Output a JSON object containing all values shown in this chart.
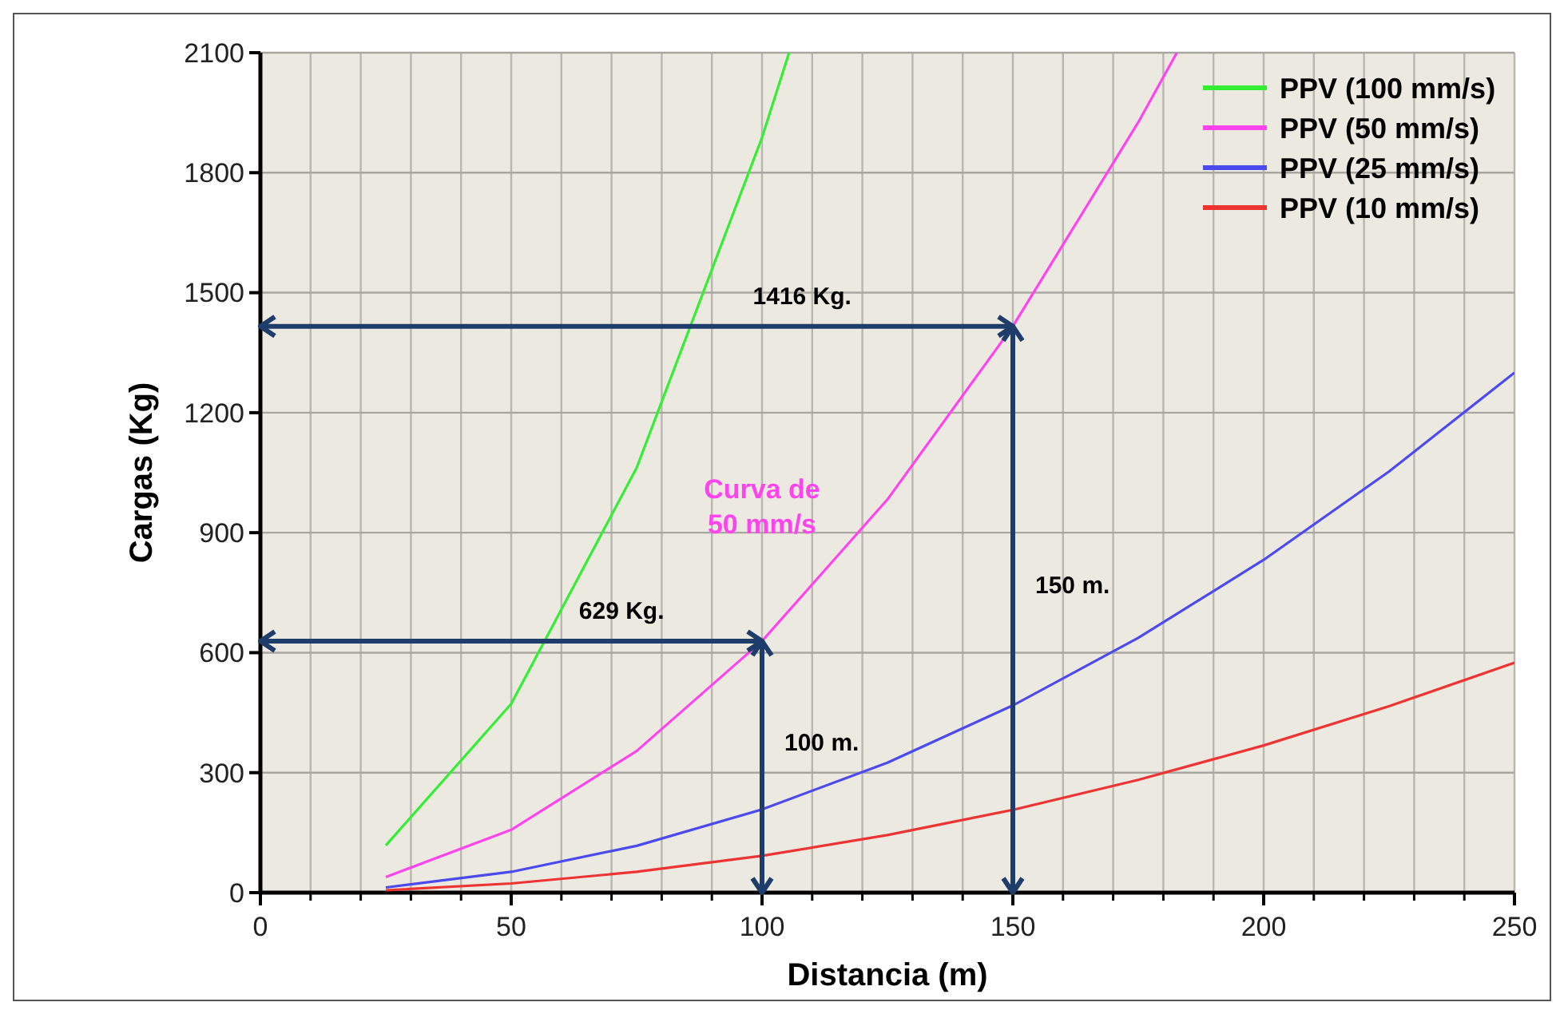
{
  "chart_data": {
    "type": "line",
    "xlabel": "Distancia (m)",
    "ylabel": "Cargas (Kg)",
    "xlim": [
      0,
      250
    ],
    "xticks": [
      0,
      50,
      100,
      150,
      200,
      250
    ],
    "ylim": [
      0,
      2100
    ],
    "yticks": [
      0,
      300,
      600,
      900,
      1200,
      1500,
      1800,
      2100
    ],
    "grid": true,
    "legend": "top right",
    "marker": "none",
    "line_style": "solid",
    "series": [
      {
        "name": "PPV (100 mm/s)",
        "color": "#33ee33",
        "x": [
          25,
          50,
          75,
          100,
          105.4
        ],
        "values": [
          118,
          472,
          1062,
          1888,
          2100
        ]
      },
      {
        "name": "PPV (50 mm/s)",
        "color": "#ff44ee",
        "x": [
          25,
          50,
          75,
          100,
          125,
          150,
          175,
          182.7
        ],
        "values": [
          39,
          157,
          354,
          629,
          983,
          1416,
          1926,
          2100
        ]
      },
      {
        "name": "PPV (25 mm/s)",
        "color": "#4a4aee",
        "x": [
          25,
          50,
          75,
          100,
          125,
          150,
          175,
          200,
          225,
          250
        ],
        "values": [
          13,
          52,
          117,
          208,
          325,
          468,
          637,
          832,
          1053,
          1300
        ]
      },
      {
        "name": "PPV (10 mm/s)",
        "color": "#ee3333",
        "x": [
          25,
          50,
          75,
          100,
          125,
          150,
          175,
          200,
          225,
          250
        ],
        "values": [
          6,
          23,
          52,
          92,
          144,
          207,
          282,
          368,
          466,
          575
        ]
      }
    ],
    "ref_lines": [
      {
        "axis": "y",
        "value": 1416,
        "label": "1416 Kg.",
        "color": "#1f3d6b"
      },
      {
        "axis": "x",
        "value": 150,
        "label": "150 m.",
        "color": "#1f3d6b"
      },
      {
        "axis": "y",
        "value": 629,
        "label": "629 Kg.",
        "color": "#1f3d6b"
      },
      {
        "axis": "x",
        "value": 100,
        "label": "100 m.",
        "color": "#1f3d6b"
      }
    ],
    "annotations": [
      "Curva de 50 mm/s"
    ]
  }
}
